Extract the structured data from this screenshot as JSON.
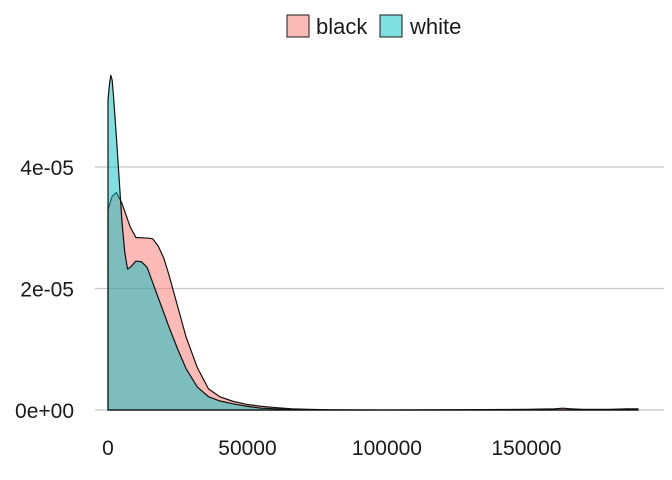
{
  "chart_data": {
    "type": "area",
    "title": "",
    "xlabel": "",
    "ylabel": "",
    "xlim": [
      0,
      190000
    ],
    "ylim": [
      0,
      5.5e-05
    ],
    "grid": {
      "horizontal": true,
      "vertical": false
    },
    "legend": {
      "position": "top",
      "entries": [
        "black",
        "white"
      ]
    },
    "x_ticks": [
      0,
      50000,
      100000,
      150000
    ],
    "x_tick_labels": [
      "0",
      "50000",
      "100000",
      "150000"
    ],
    "y_ticks": [
      0,
      2e-05,
      4e-05
    ],
    "y_tick_labels": [
      "0e+00",
      "2e-05",
      "4e-05"
    ],
    "series": [
      {
        "name": "black",
        "color": "#F8766D",
        "opacity": 0.5,
        "x": [
          0,
          1500,
          3000,
          5000,
          8000,
          10000,
          14000,
          16000,
          18000,
          20000,
          22000,
          25000,
          28000,
          32000,
          36000,
          40000,
          45000,
          50000,
          55000,
          60000,
          66000,
          72000,
          80000,
          100000,
          150000,
          160000,
          163000,
          166000,
          170000,
          180000,
          186000,
          190000
        ],
        "values": [
          3.3e-05,
          3.52e-05,
          3.58e-05,
          3.4e-05,
          3.01e-05,
          2.84e-05,
          2.83e-05,
          2.82e-05,
          2.7e-05,
          2.5e-05,
          2.2e-05,
          1.7e-05,
          1.2e-05,
          7e-06,
          3.5e-06,
          2.2e-06,
          1.4e-06,
          9e-07,
          6e-07,
          4e-07,
          2e-07,
          1e-07,
          3e-08,
          1e-08,
          1e-07,
          2e-07,
          3e-07,
          2e-07,
          1e-07,
          1e-07,
          2e-07,
          2e-07
        ]
      },
      {
        "name": "white",
        "color": "#00BFC4",
        "opacity": 0.5,
        "x": [
          0,
          500,
          1000,
          1500,
          2000,
          3000,
          4000,
          5000,
          6000,
          7000,
          8000,
          10000,
          12000,
          14000,
          16000,
          18000,
          20000,
          22000,
          25000,
          28000,
          32000,
          36000,
          40000,
          45000,
          50000,
          55000,
          60000,
          66000,
          72000,
          80000,
          100000,
          190000
        ],
        "values": [
          5.1e-05,
          5.35e-05,
          5.51e-05,
          5.43e-05,
          5.15e-05,
          4.5e-05,
          3.8e-05,
          3.1e-05,
          2.6e-05,
          2.32e-05,
          2.35e-05,
          2.45e-05,
          2.44e-05,
          2.35e-05,
          2.1e-05,
          1.85e-05,
          1.6e-05,
          1.35e-05,
          1e-05,
          6.8e-06,
          3.8e-06,
          2.2e-06,
          1.5e-06,
          1e-06,
          6e-07,
          3e-07,
          2e-07,
          1e-07,
          5e-08,
          2e-08,
          0.0,
          0.0
        ]
      }
    ]
  }
}
